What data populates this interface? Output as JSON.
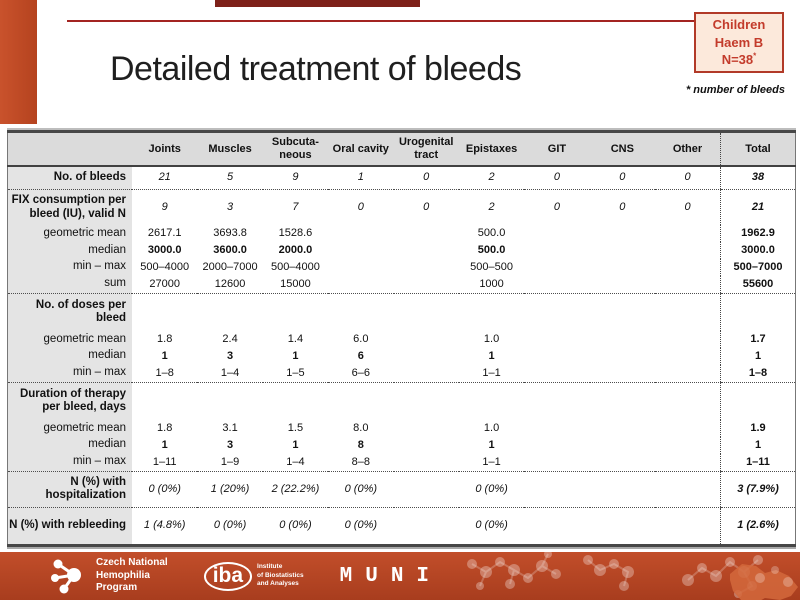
{
  "slide": {
    "title": "Detailed treatment of bleeds",
    "badge": {
      "line1": "Children",
      "line2": "Haem B",
      "line3": "N=38",
      "sup": "*"
    },
    "badge_note": "* number of bleeds"
  },
  "table": {
    "columns": [
      "",
      "Joints",
      "Muscles",
      "Subcuta-\nneous",
      "Oral cavity",
      "Urogenital\ntract",
      "Epistaxes",
      "GIT",
      "CNS",
      "Other",
      "Total"
    ],
    "rows": [
      {
        "label": "No. of bleeds",
        "type": "nvalues",
        "dotted_after": true,
        "values": [
          "21",
          "5",
          "9",
          "1",
          "0",
          "2",
          "0",
          "0",
          "0",
          "38"
        ]
      },
      {
        "label": "FIX consumption per\nbleed (IU), valid N",
        "type": "nvalues",
        "values": [
          "9",
          "3",
          "7",
          "0",
          "0",
          "2",
          "0",
          "0",
          "0",
          "21"
        ]
      },
      {
        "label": "geometric mean",
        "type": "stat",
        "values": [
          "2617.1",
          "3693.8",
          "1528.6",
          "",
          "",
          "500.0",
          "",
          "",
          "",
          "1962.9"
        ]
      },
      {
        "label": "median",
        "type": "stat-bold",
        "values": [
          "3000.0",
          "3600.0",
          "2000.0",
          "",
          "",
          "500.0",
          "",
          "",
          "",
          "3000.0"
        ]
      },
      {
        "label": "min – max",
        "type": "stat",
        "values": [
          "500–4000",
          "2000–7000",
          "500–4000",
          "",
          "",
          "500–500",
          "",
          "",
          "",
          "500–7000"
        ]
      },
      {
        "label": "sum",
        "type": "stat",
        "dotted_after": true,
        "values": [
          "27000",
          "12600",
          "15000",
          "",
          "",
          "1000",
          "",
          "",
          "",
          "55600"
        ]
      },
      {
        "label": "No. of doses per\nbleed",
        "type": "section",
        "values": [
          "",
          "",
          "",
          "",
          "",
          "",
          "",
          "",
          "",
          ""
        ]
      },
      {
        "label": "geometric mean",
        "type": "stat",
        "values": [
          "1.8",
          "2.4",
          "1.4",
          "6.0",
          "",
          "1.0",
          "",
          "",
          "",
          "1.7"
        ]
      },
      {
        "label": "median",
        "type": "stat-bold",
        "values": [
          "1",
          "3",
          "1",
          "6",
          "",
          "1",
          "",
          "",
          "",
          "1"
        ]
      },
      {
        "label": "min – max",
        "type": "stat",
        "dotted_after": true,
        "values": [
          "1–8",
          "1–4",
          "1–5",
          "6–6",
          "",
          "1–1",
          "",
          "",
          "",
          "1–8"
        ]
      },
      {
        "label": "Duration of therapy\nper bleed, days",
        "type": "section",
        "values": [
          "",
          "",
          "",
          "",
          "",
          "",
          "",
          "",
          "",
          ""
        ]
      },
      {
        "label": "geometric mean",
        "type": "stat",
        "values": [
          "1.8",
          "3.1",
          "1.5",
          "8.0",
          "",
          "1.0",
          "",
          "",
          "",
          "1.9"
        ]
      },
      {
        "label": "median",
        "type": "stat-bold",
        "values": [
          "1",
          "3",
          "1",
          "8",
          "",
          "1",
          "",
          "",
          "",
          "1"
        ]
      },
      {
        "label": "min – max",
        "type": "stat",
        "dotted_after": true,
        "values": [
          "1–11",
          "1–9",
          "1–4",
          "8–8",
          "",
          "1–1",
          "",
          "",
          "",
          "1–11"
        ]
      },
      {
        "label": "N (%) with\nhospitalization",
        "type": "nvalues",
        "dotted_after": true,
        "values": [
          "0 (0%)",
          "1 (20%)",
          "2 (22.2%)",
          "0 (0%)",
          "",
          "0 (0%)",
          "",
          "",
          "",
          "3 (7.9%)"
        ]
      },
      {
        "label": "N (%) with rebleeding",
        "type": "nvalues",
        "values": [
          "1 (4.8%)",
          "0 (0%)",
          "0 (0%)",
          "0 (0%)",
          "",
          "0 (0%)",
          "",
          "",
          "",
          "1 (2.6%)"
        ]
      }
    ]
  },
  "footer": {
    "cnhp": "Czech National\nHemophilia\nProgram",
    "iba_name": "iba",
    "iba_sub": "Institute\nof Biostatistics\nand Analyses",
    "muni": "MUNI"
  },
  "colors": {
    "accent_bar": "#C4502B",
    "title_line": "#A32421",
    "badge_border": "#B23A28",
    "badge_bg": "#FCE9DB",
    "badge_text": "#C33B2B",
    "footer_bg": "#BC4A27",
    "table_header_bg": "#DBDBDB",
    "table_label_bg": "#E4E4E4"
  }
}
